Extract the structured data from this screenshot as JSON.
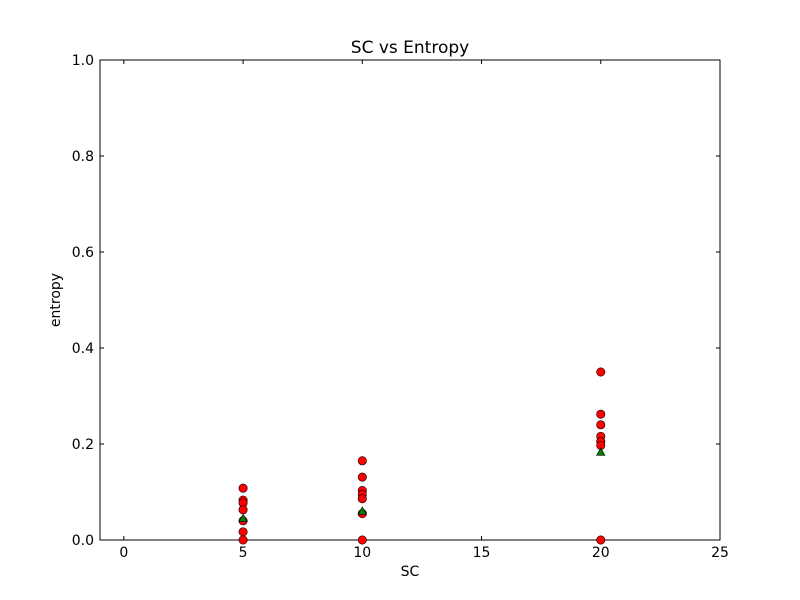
{
  "chart_data": {
    "type": "scatter",
    "title": "SC vs Entropy",
    "xlabel": "SC",
    "ylabel": "entropy",
    "xlim": [
      -1,
      25
    ],
    "ylim": [
      0,
      1.0
    ],
    "xticks": [
      0,
      5,
      10,
      15,
      20,
      25
    ],
    "yticks": [
      0.0,
      0.2,
      0.4,
      0.6,
      0.8,
      1.0
    ],
    "xtick_labels": [
      "0",
      "5",
      "10",
      "15",
      "20",
      "25"
    ],
    "ytick_labels": [
      "0.0",
      "0.2",
      "0.4",
      "0.6",
      "0.8",
      "1.0"
    ],
    "grid": false,
    "series": [
      {
        "marker": "circle",
        "color": "#ff0000",
        "points": [
          [
            5,
            0.108
          ],
          [
            5,
            0.083
          ],
          [
            5,
            0.077
          ],
          [
            5,
            0.063
          ],
          [
            5,
            0.04
          ],
          [
            5,
            0.017
          ],
          [
            5,
            0.0
          ],
          [
            10,
            0.165
          ],
          [
            10,
            0.131
          ],
          [
            10,
            0.103
          ],
          [
            10,
            0.095
          ],
          [
            10,
            0.086
          ],
          [
            10,
            0.055
          ],
          [
            10,
            0.0
          ],
          [
            20,
            0.35
          ],
          [
            20,
            0.262
          ],
          [
            20,
            0.24
          ],
          [
            20,
            0.216
          ],
          [
            20,
            0.205
          ],
          [
            20,
            0.197
          ],
          [
            20,
            0.0
          ]
        ]
      },
      {
        "marker": "triangle",
        "color": "#008000",
        "points": [
          [
            5,
            0.045
          ],
          [
            10,
            0.06
          ],
          [
            20,
            0.183
          ]
        ]
      }
    ]
  }
}
